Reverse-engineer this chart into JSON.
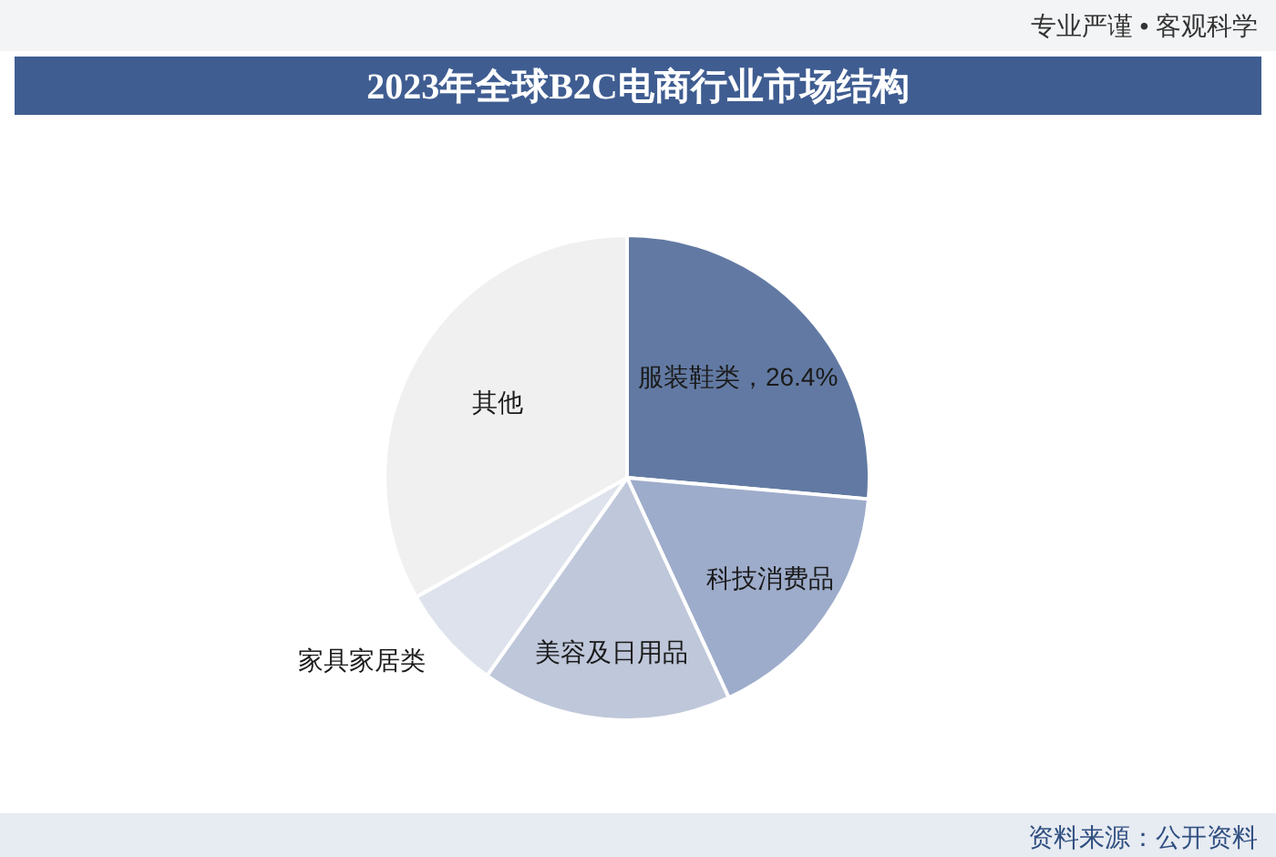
{
  "chart_data": {
    "type": "pie",
    "title": "2023年全球B2C电商行业市场结构",
    "categories": [
      "服装鞋类",
      "科技消费品",
      "美容及日用品",
      "家具家居类",
      "其他"
    ],
    "values": [
      26.4,
      16.7,
      16.7,
      7.0,
      33.2
    ],
    "colors": [
      "#627aa3",
      "#9eaccb",
      "#bfc7da",
      "#dde2ec",
      "#f0f0f0"
    ],
    "value_labels": [
      "26.4%",
      null,
      null,
      null,
      null
    ],
    "annotations": [
      "专业严谨 • 客观科学",
      "资料来源：公开资料"
    ]
  }
}
